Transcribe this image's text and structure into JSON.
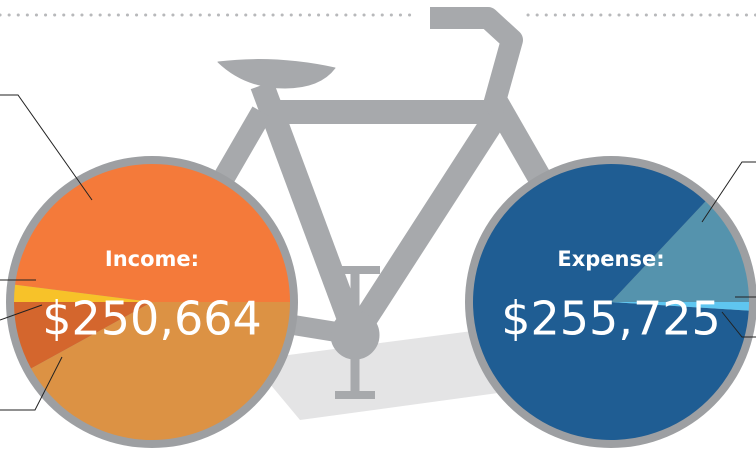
{
  "chart_data": [
    {
      "type": "pie",
      "title": "Income:",
      "subtitle": "$250,664",
      "categories": [
        null,
        null,
        null,
        null
      ],
      "values": [
        48,
        2,
        8,
        42
      ],
      "colors": [
        "#f47a3a",
        "#f7c229",
        "#d4662d",
        "#dc9244"
      ]
    },
    {
      "type": "pie",
      "title": "Expense:",
      "subtitle": "$255,725",
      "categories": [
        null,
        null,
        null
      ],
      "values": [
        13,
        86,
        1
      ],
      "colors": [
        "#5593ad",
        "#1f5d93",
        "#5fc6f0"
      ]
    }
  ]
}
